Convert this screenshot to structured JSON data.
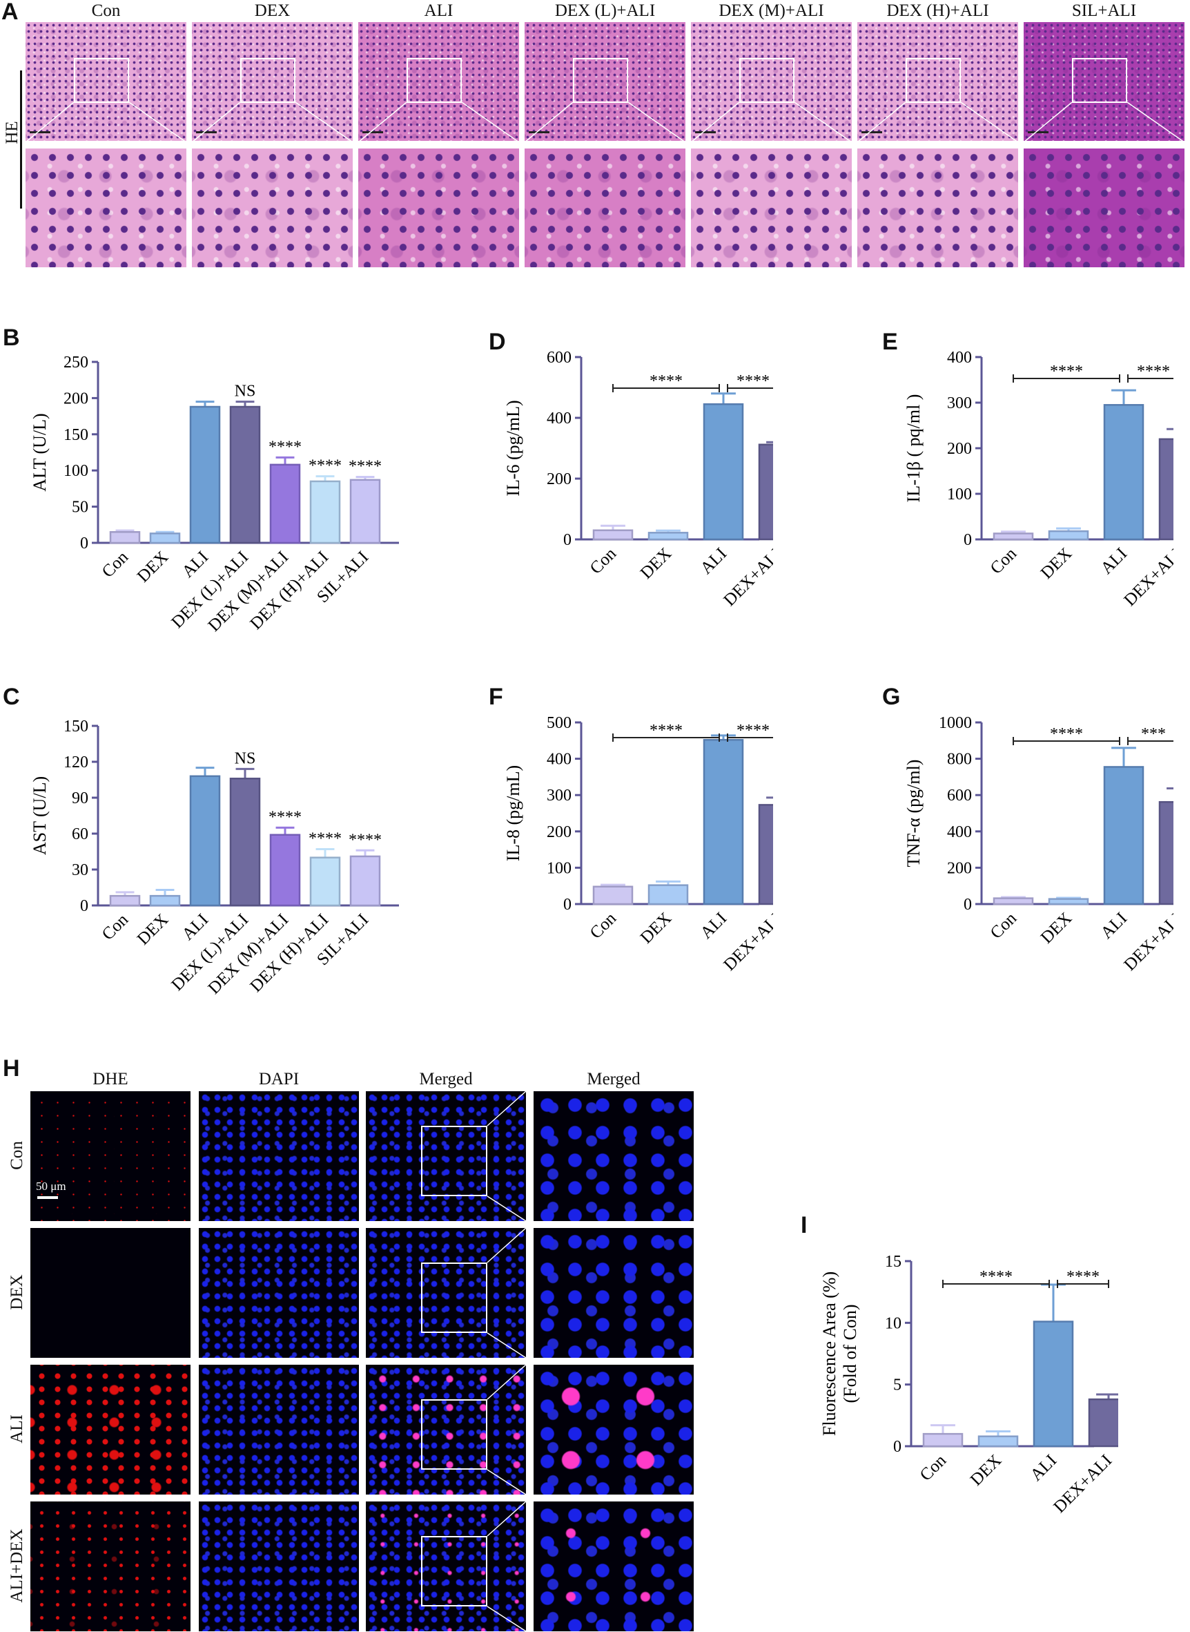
{
  "panel_labels": {
    "A": "A",
    "B": "B",
    "C": "C",
    "D": "D",
    "E": "E",
    "F": "F",
    "G": "G",
    "H": "H",
    "I": "I"
  },
  "panel_a": {
    "row_label": "HE",
    "groups": [
      "Con",
      "DEX",
      "ALI",
      "DEX (L)+ALI",
      "DEX (M)+ALI",
      "DEX (H)+ALI",
      "SIL+ALI"
    ],
    "colors": {
      "pink_light": "#e7a8d8",
      "pink_mid": "#d77fc5",
      "purple_dark": "#a93eae",
      "nuclei": "#5a2a8a"
    }
  },
  "panel_h": {
    "column_headers": [
      "DHE",
      "DAPI",
      "Merged",
      "Merged"
    ],
    "row_labels": [
      "Con",
      "DEX",
      "ALI",
      "ALI+DEX"
    ],
    "scale_bar_label": "50 μm",
    "colors": {
      "dapi": "#1a22e8",
      "dhe": "#e01010",
      "merged": "#ff3bc8"
    }
  },
  "bar_colors": [
    "#cdc8f2",
    "#a9cbf5",
    "#6e9fd4",
    "#6f6a9e",
    "#9577de",
    "#bfe0f8",
    "#c8c4f5"
  ],
  "axis_color": "#5b5696",
  "chart_data": [
    {
      "id": "B",
      "type": "bar",
      "ylabel": "ALT (U/L)",
      "ylim": [
        0,
        250
      ],
      "yticks": [
        0,
        50,
        100,
        150,
        200,
        250
      ],
      "categories": [
        "Con",
        "DEX",
        "ALI",
        "DEX (L)+ALI",
        "DEX (M)+ALI",
        "DEX (H)+ALI",
        "SIL+ALI"
      ],
      "values": [
        15,
        13,
        188,
        188,
        108,
        85,
        87
      ],
      "errors": [
        2,
        2,
        7,
        7,
        10,
        7,
        4
      ],
      "labels": [
        "",
        "",
        "",
        "NS",
        "****",
        "****",
        "****"
      ],
      "comparisons": []
    },
    {
      "id": "C",
      "type": "bar",
      "ylabel": "AST  (U/L)",
      "ylim": [
        0,
        150
      ],
      "yticks": [
        0,
        30,
        60,
        90,
        120,
        150
      ],
      "categories": [
        "Con",
        "DEX",
        "ALI",
        "DEX (L)+ALI",
        "DEX (M)+ALI",
        "DEX (H)+ALI",
        "SIL+ALI"
      ],
      "values": [
        8,
        8,
        108,
        106,
        59,
        40,
        41
      ],
      "errors": [
        3,
        5,
        7,
        8,
        6,
        7,
        5
      ],
      "labels": [
        "",
        "",
        "",
        "NS",
        "****",
        "****",
        "****"
      ],
      "comparisons": []
    },
    {
      "id": "D",
      "type": "bar",
      "ylabel": "IL-6 (pg/mL)",
      "ylim": [
        0,
        600
      ],
      "yticks": [
        0,
        200,
        400,
        600
      ],
      "categories": [
        "Con",
        "DEX",
        "ALI",
        "DEX+ALI"
      ],
      "values": [
        30,
        22,
        445,
        312
      ],
      "errors": [
        15,
        7,
        35,
        8
      ],
      "labels": [
        "",
        "",
        "",
        ""
      ],
      "comparisons": [
        {
          "from": 0,
          "to": 2,
          "label": "****"
        },
        {
          "from": 2,
          "to": 3,
          "label": "****"
        }
      ]
    },
    {
      "id": "E",
      "type": "bar",
      "ylabel": "IL-1β ( pq/ml )",
      "ylim": [
        0,
        400
      ],
      "yticks": [
        0,
        100,
        200,
        300,
        400
      ],
      "categories": [
        "Con",
        "DEX",
        "ALI",
        "DEX+ALI"
      ],
      "values": [
        13,
        18,
        295,
        220
      ],
      "errors": [
        4,
        6,
        32,
        22
      ],
      "labels": [
        "",
        "",
        "",
        ""
      ],
      "comparisons": [
        {
          "from": 0,
          "to": 2,
          "label": "****"
        },
        {
          "from": 2,
          "to": 3,
          "label": "****"
        }
      ]
    },
    {
      "id": "F",
      "type": "bar",
      "ylabel": "IL-8 (pg/mL)",
      "ylim": [
        0,
        500
      ],
      "yticks": [
        0,
        100,
        200,
        300,
        400,
        500
      ],
      "categories": [
        "Con",
        "DEX",
        "ALI",
        "DEX+ALI"
      ],
      "values": [
        48,
        52,
        452,
        273
      ],
      "errors": [
        5,
        10,
        12,
        20
      ],
      "labels": [
        "",
        "",
        "",
        ""
      ],
      "comparisons": [
        {
          "from": 0,
          "to": 2,
          "label": "****"
        },
        {
          "from": 2,
          "to": 3,
          "label": "****"
        }
      ]
    },
    {
      "id": "G",
      "type": "bar",
      "ylabel": "TNF-α (pg/ml)",
      "ylim": [
        0,
        1000
      ],
      "yticks": [
        0,
        200,
        400,
        600,
        800,
        1000
      ],
      "categories": [
        "Con",
        "DEX",
        "ALI",
        "DEX+ALI"
      ],
      "values": [
        32,
        28,
        755,
        562
      ],
      "errors": [
        6,
        6,
        105,
        75
      ],
      "labels": [
        "",
        "",
        "",
        ""
      ],
      "comparisons": [
        {
          "from": 0,
          "to": 2,
          "label": "****"
        },
        {
          "from": 2,
          "to": 3,
          "label": "***"
        }
      ]
    },
    {
      "id": "I",
      "type": "bar",
      "ylabel": "Fluorescence Area (%)",
      "ylabel2": "(Fold of Con)",
      "ylim": [
        0,
        15
      ],
      "yticks": [
        0,
        5,
        10,
        15
      ],
      "categories": [
        "Con",
        "DEX",
        "ALI",
        "DEX+ALI"
      ],
      "values": [
        1.0,
        0.8,
        10.1,
        3.8
      ],
      "errors": [
        0.7,
        0.4,
        3.0,
        0.4
      ],
      "labels": [
        "",
        "",
        "",
        ""
      ],
      "comparisons": [
        {
          "from": 0,
          "to": 2,
          "label": "****"
        },
        {
          "from": 2,
          "to": 3,
          "label": "****"
        }
      ]
    }
  ]
}
